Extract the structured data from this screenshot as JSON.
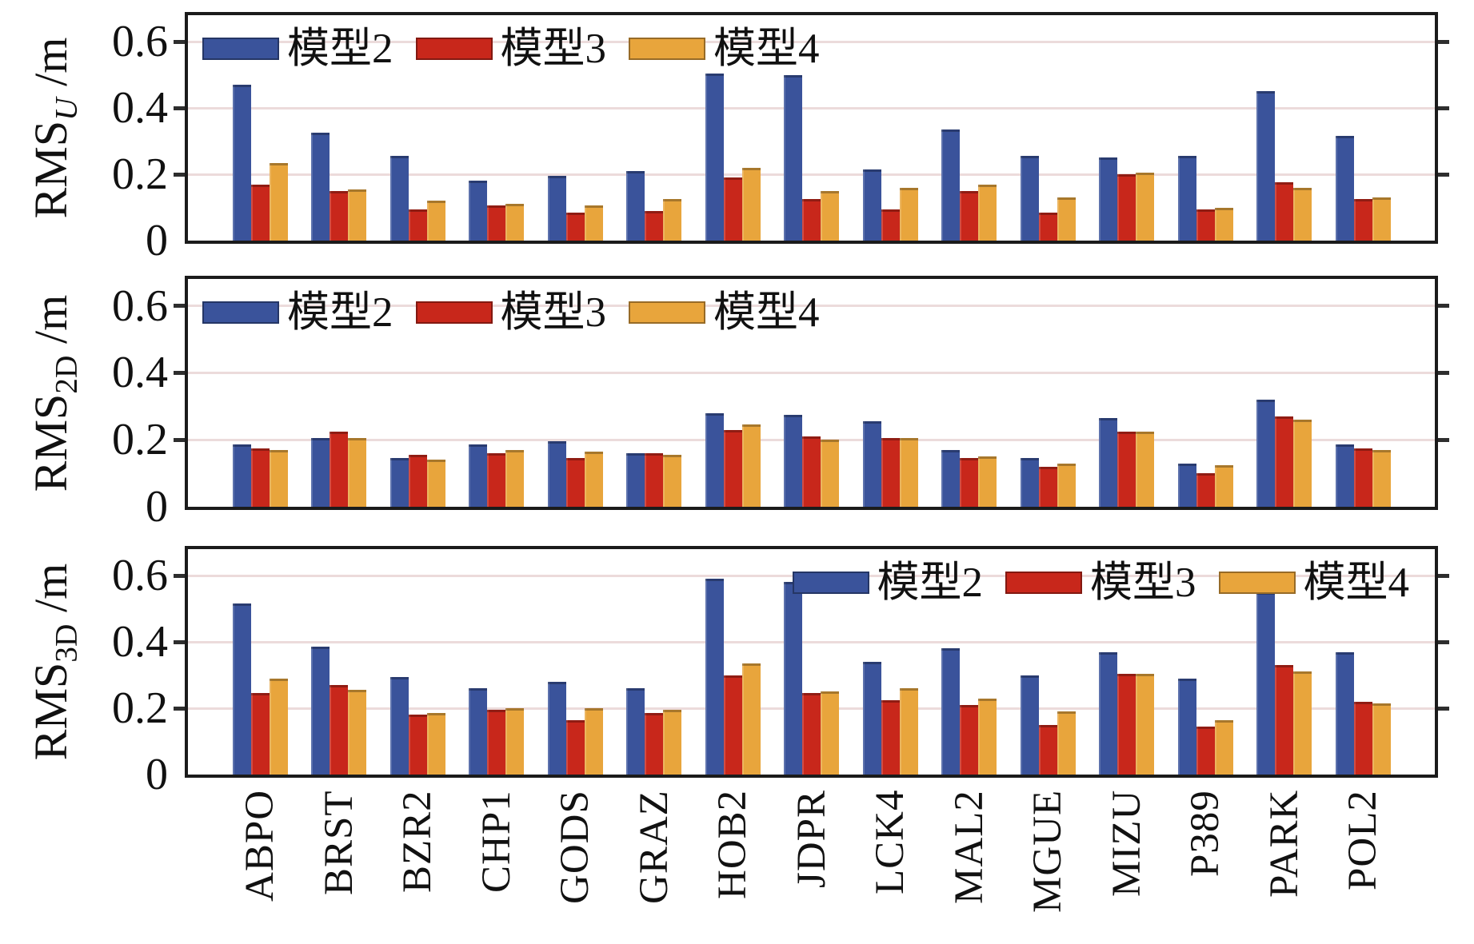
{
  "figure": {
    "background": "#ffffff",
    "grid_color": "#ecdbdb",
    "axis_color": "#1b1b1b",
    "tick_color": "#2e2e2e",
    "y_tick_labels": [
      "0",
      "0.2",
      "0.4",
      "0.6"
    ],
    "stations": [
      "ABPO",
      "BRST",
      "BZR2",
      "CHP1",
      "GODS",
      "GRAZ",
      "HOB2",
      "JDPR",
      "LCK4",
      "MAL2",
      "MGUE",
      "MIZU",
      "P389",
      "PARK",
      "POL2"
    ],
    "legend_items": [
      {
        "label": "模型2",
        "color": "#3A539B"
      },
      {
        "label": "模型3",
        "color": "#C8271B"
      },
      {
        "label": "模型4",
        "color": "#E8A53C"
      }
    ]
  },
  "chart_data": [
    {
      "type": "bar",
      "panel": "RMS_U",
      "ylabel": "RMS_U/m",
      "ylabel_parts": {
        "base": "RMS",
        "sub": "U",
        "sub_italic": true,
        "suffix": "/m"
      },
      "ylim": [
        0,
        0.68
      ],
      "yticks": [
        0,
        0.2,
        0.4,
        0.6
      ],
      "grid": true,
      "legend_position": "top-left",
      "categories": [
        "ABPO",
        "BRST",
        "BZR2",
        "CHP1",
        "GODS",
        "GRAZ",
        "HOB2",
        "JDPR",
        "LCK4",
        "MAL2",
        "MGUE",
        "MIZU",
        "P389",
        "PARK",
        "POL2"
      ],
      "series": [
        {
          "name": "模型2",
          "color": "#3A539B",
          "values": [
            0.47,
            0.325,
            0.255,
            0.18,
            0.195,
            0.21,
            0.505,
            0.5,
            0.215,
            0.335,
            0.255,
            0.25,
            0.255,
            0.45,
            0.315
          ]
        },
        {
          "name": "模型3",
          "color": "#C8271B",
          "values": [
            0.17,
            0.15,
            0.095,
            0.105,
            0.085,
            0.09,
            0.19,
            0.125,
            0.095,
            0.15,
            0.085,
            0.2,
            0.095,
            0.175,
            0.125
          ]
        },
        {
          "name": "模型4",
          "color": "#E8A53C",
          "values": [
            0.235,
            0.155,
            0.12,
            0.11,
            0.105,
            0.125,
            0.22,
            0.15,
            0.16,
            0.17,
            0.13,
            0.205,
            0.1,
            0.16,
            0.13
          ]
        }
      ]
    },
    {
      "type": "bar",
      "panel": "RMS_2D",
      "ylabel": "RMS_2D/m",
      "ylabel_parts": {
        "base": "RMS",
        "sub": "2D",
        "sub_italic": false,
        "suffix": "/m"
      },
      "ylim": [
        0,
        0.68
      ],
      "yticks": [
        0,
        0.2,
        0.4,
        0.6
      ],
      "grid": true,
      "legend_position": "top-left",
      "categories": [
        "ABPO",
        "BRST",
        "BZR2",
        "CHP1",
        "GODS",
        "GRAZ",
        "HOB2",
        "JDPR",
        "LCK4",
        "MAL2",
        "MGUE",
        "MIZU",
        "P389",
        "PARK",
        "POL2"
      ],
      "series": [
        {
          "name": "模型2",
          "color": "#3A539B",
          "values": [
            0.185,
            0.205,
            0.145,
            0.185,
            0.195,
            0.16,
            0.28,
            0.275,
            0.255,
            0.17,
            0.145,
            0.265,
            0.13,
            0.32,
            0.185
          ]
        },
        {
          "name": "模型3",
          "color": "#C8271B",
          "values": [
            0.175,
            0.225,
            0.155,
            0.16,
            0.145,
            0.16,
            0.23,
            0.21,
            0.205,
            0.145,
            0.12,
            0.225,
            0.1,
            0.27,
            0.175
          ]
        },
        {
          "name": "模型4",
          "color": "#E8A53C",
          "values": [
            0.17,
            0.205,
            0.14,
            0.17,
            0.165,
            0.155,
            0.245,
            0.2,
            0.205,
            0.15,
            0.13,
            0.225,
            0.125,
            0.26,
            0.17
          ]
        }
      ]
    },
    {
      "type": "bar",
      "panel": "RMS_3D",
      "ylabel": "RMS_3D/m",
      "ylabel_parts": {
        "base": "RMS",
        "sub": "3D",
        "sub_italic": false,
        "suffix": "/m"
      },
      "ylim": [
        0,
        0.68
      ],
      "yticks": [
        0,
        0.2,
        0.4,
        0.6
      ],
      "grid": true,
      "legend_position": "top-right",
      "categories": [
        "ABPO",
        "BRST",
        "BZR2",
        "CHP1",
        "GODS",
        "GRAZ",
        "HOB2",
        "JDPR",
        "LCK4",
        "MAL2",
        "MGUE",
        "MIZU",
        "P389",
        "PARK",
        "POL2"
      ],
      "series": [
        {
          "name": "模型2",
          "color": "#3A539B",
          "values": [
            0.515,
            0.385,
            0.295,
            0.26,
            0.28,
            0.26,
            0.59,
            0.58,
            0.34,
            0.38,
            0.3,
            0.37,
            0.29,
            0.55,
            0.37
          ]
        },
        {
          "name": "模型3",
          "color": "#C8271B",
          "values": [
            0.245,
            0.27,
            0.18,
            0.195,
            0.165,
            0.185,
            0.3,
            0.245,
            0.225,
            0.21,
            0.15,
            0.305,
            0.145,
            0.33,
            0.22
          ]
        },
        {
          "name": "模型4",
          "color": "#E8A53C",
          "values": [
            0.29,
            0.255,
            0.185,
            0.2,
            0.2,
            0.195,
            0.335,
            0.25,
            0.26,
            0.23,
            0.19,
            0.305,
            0.165,
            0.31,
            0.215
          ]
        }
      ]
    }
  ]
}
